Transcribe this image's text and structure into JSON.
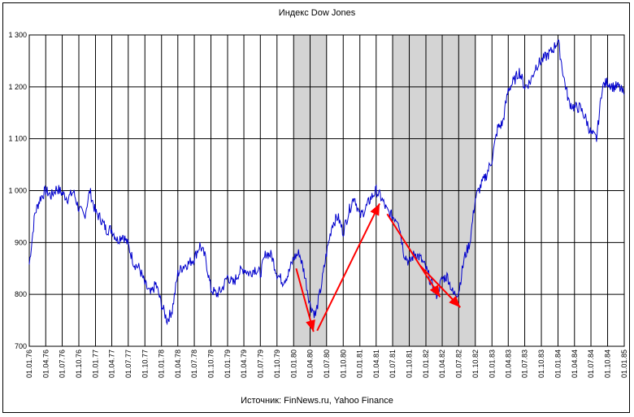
{
  "chart_data": {
    "type": "line",
    "title": "Индекс Dow Jones",
    "source": "Источник: FinNews.ru, Yahoo Finance",
    "ylim": [
      700,
      1300
    ],
    "yticks": [
      700,
      800,
      900,
      1000,
      1100,
      1200,
      1300
    ],
    "ytick_labels": [
      "700",
      "800",
      "900",
      "1 000",
      "1 100",
      "1 200",
      "1 300"
    ],
    "grid": true,
    "x_tick_labels": [
      "01.01.76",
      "01.04.76",
      "01.07.76",
      "01.10.76",
      "01.01.77",
      "01.04.77",
      "01.07.77",
      "01.10.77",
      "01.01.78",
      "01.04.78",
      "01.07.78",
      "01.10.78",
      "01.01.79",
      "01.04.79",
      "01.07.79",
      "01.10.79",
      "01.01.80",
      "01.04.80",
      "01.07.80",
      "01.10.80",
      "01.01.81",
      "01.04.81",
      "01.07.81",
      "01.10.81",
      "01.01.82",
      "01.04.82",
      "01.07.82",
      "01.10.82",
      "01.01.83",
      "01.04.83",
      "01.07.83",
      "01.10.83",
      "01.01.84",
      "01.04.84",
      "01.07.84",
      "01.10.84",
      "01.01.85"
    ],
    "shaded_periods": [
      {
        "from": "01.01.80",
        "to": "01.07.80"
      },
      {
        "from": "01.07.81",
        "to": "01.10.82"
      }
    ],
    "arrows": [
      {
        "from": {
          "x": "1980-01-15",
          "y": 850
        },
        "to": {
          "x": "1980-04-20",
          "y": 728
        }
      },
      {
        "from": {
          "x": "1980-05-10",
          "y": 730
        },
        "to": {
          "x": "1981-04-20",
          "y": 975
        }
      },
      {
        "from": {
          "x": "1981-06-01",
          "y": 955
        },
        "to": {
          "x": "1982-03-20",
          "y": 795
        }
      },
      {
        "from": {
          "x": "1981-12-01",
          "y": 855
        },
        "to": {
          "x": "1982-07-10",
          "y": 775
        }
      }
    ],
    "series": [
      {
        "color": "#0000cc",
        "x": [
          "1976-01-01",
          "1976-02-01",
          "1976-03-01",
          "1976-04-01",
          "1976-05-01",
          "1976-06-01",
          "1976-07-01",
          "1976-08-01",
          "1976-09-01",
          "1976-10-01",
          "1976-11-01",
          "1976-12-01",
          "1977-01-01",
          "1977-02-01",
          "1977-03-01",
          "1977-04-01",
          "1977-05-01",
          "1977-06-01",
          "1977-07-01",
          "1977-08-01",
          "1977-09-01",
          "1977-10-01",
          "1977-11-01",
          "1977-12-01",
          "1978-01-01",
          "1978-02-01",
          "1978-03-01",
          "1978-04-01",
          "1978-05-01",
          "1978-06-01",
          "1978-07-01",
          "1978-08-01",
          "1978-09-01",
          "1978-10-01",
          "1978-11-01",
          "1978-12-01",
          "1979-01-01",
          "1979-02-01",
          "1979-03-01",
          "1979-04-01",
          "1979-05-01",
          "1979-06-01",
          "1979-07-01",
          "1979-08-01",
          "1979-09-01",
          "1979-10-01",
          "1979-11-01",
          "1979-12-01",
          "1980-01-01",
          "1980-02-01",
          "1980-03-01",
          "1980-04-01",
          "1980-05-01",
          "1980-06-01",
          "1980-07-01",
          "1980-08-01",
          "1980-09-01",
          "1980-10-01",
          "1980-11-01",
          "1980-12-01",
          "1981-01-01",
          "1981-02-01",
          "1981-03-01",
          "1981-04-01",
          "1981-05-01",
          "1981-06-01",
          "1981-07-01",
          "1981-08-01",
          "1981-09-01",
          "1981-10-01",
          "1981-11-01",
          "1981-12-01",
          "1982-01-01",
          "1982-02-01",
          "1982-03-01",
          "1982-04-01",
          "1982-05-01",
          "1982-06-01",
          "1982-07-01",
          "1982-08-01",
          "1982-09-01",
          "1982-10-01",
          "1982-11-01",
          "1982-12-01",
          "1983-01-01",
          "1983-02-01",
          "1983-03-01",
          "1983-04-01",
          "1983-05-01",
          "1983-06-01",
          "1983-07-01",
          "1983-08-01",
          "1983-09-01",
          "1983-10-01",
          "1983-11-01",
          "1983-12-01",
          "1984-01-01",
          "1984-02-01",
          "1984-03-01",
          "1984-04-01",
          "1984-05-01",
          "1984-06-01",
          "1984-07-01",
          "1984-08-01",
          "1984-09-01",
          "1984-10-01",
          "1984-11-01",
          "1984-12-01",
          "1985-01-01"
        ],
        "y": [
          858,
          955,
          985,
          1000,
          990,
          1005,
          995,
          985,
          998,
          965,
          950,
          1000,
          958,
          945,
          925,
          925,
          905,
          915,
          895,
          860,
          850,
          820,
          800,
          820,
          780,
          750,
          770,
          840,
          855,
          860,
          870,
          895,
          870,
          810,
          800,
          810,
          835,
          820,
          840,
          850,
          840,
          850,
          840,
          880,
          875,
          840,
          825,
          838,
          870,
          880,
          840,
          780,
          760,
          815,
          880,
          935,
          950,
          920,
          960,
          990,
          950,
          965,
          985,
          1000,
          985,
          960,
          950,
          945,
          880,
          860,
          880,
          870,
          850,
          820,
          800,
          830,
          835,
          800,
          805,
          870,
          900,
          985,
          1010,
          1030,
          1060,
          1120,
          1130,
          1195,
          1210,
          1230,
          1200,
          1210,
          1240,
          1250,
          1260,
          1270,
          1290,
          1220,
          1170,
          1160,
          1160,
          1140,
          1110,
          1100,
          1200,
          1210,
          1200,
          1200,
          1185
        ]
      }
    ]
  }
}
